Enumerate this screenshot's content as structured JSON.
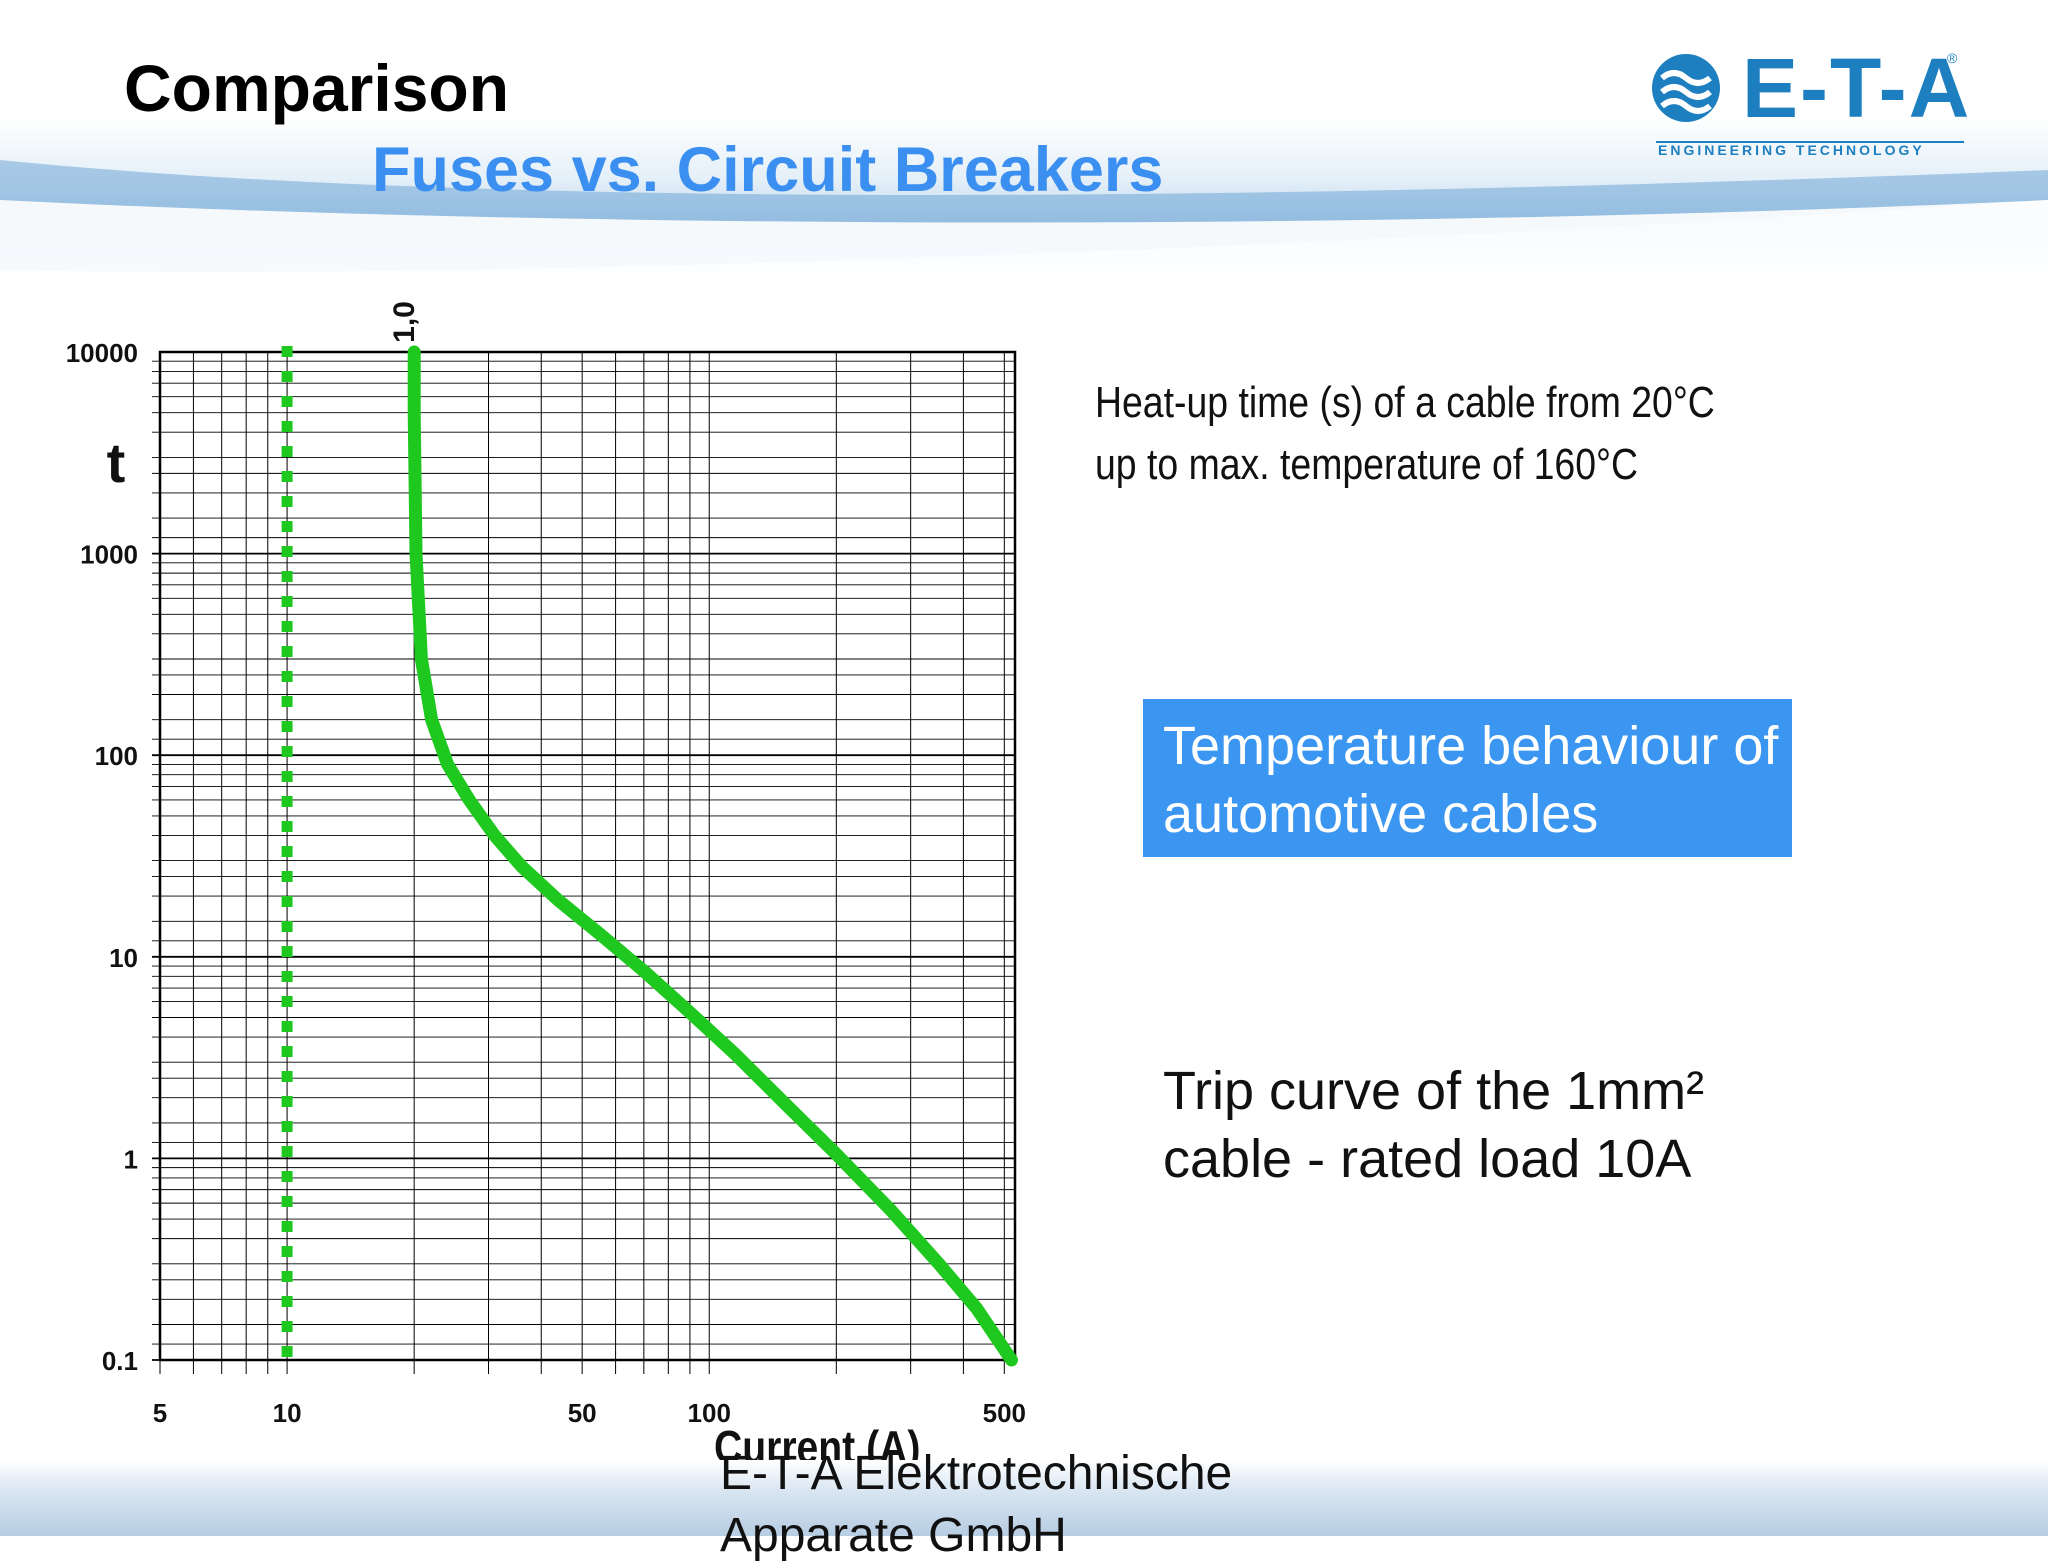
{
  "header": {
    "title": "Comparison",
    "subtitle": "Fuses vs. Circuit Breakers",
    "logo_text": "E-T-A",
    "logo_tagline": "ENGINEERING TECHNOLOGY",
    "logo_reg": "®"
  },
  "notes": {
    "heatup": "Heat-up time (s) of a cable from 20°C up to max. temperature of 160°C",
    "temperature_box": "Temperature behaviour of automotive cables",
    "trip_curve": "Trip curve of the 1mm² cable - rated load 10A"
  },
  "footer": {
    "text": "E-T-A Elektrotechnische Apparate GmbH"
  },
  "colors": {
    "curve": "#1fc81f",
    "accent_blue": "#3a96f0",
    "logo_blue": "#1d7fc0"
  },
  "chart_data": {
    "type": "line",
    "title": "",
    "xlabel": "Current (A)",
    "ylabel": "t",
    "x_scale": "log",
    "y_scale": "log",
    "xlim": [
      5,
      530
    ],
    "ylim": [
      0.1,
      10000
    ],
    "x_ticks": [
      5,
      10,
      50,
      100,
      500
    ],
    "x_tick_labels": [
      "5",
      "10",
      "50",
      "100",
      "500"
    ],
    "y_ticks": [
      10000,
      1000,
      100,
      10,
      1,
      0.1
    ],
    "y_tick_labels": [
      "10000",
      "1000",
      "100",
      "10",
      "1",
      "0.1"
    ],
    "grid": true,
    "reference_line": {
      "x": 10,
      "label": "",
      "style": "dotted"
    },
    "multiple_marker": {
      "x": 20,
      "label": "1,0"
    },
    "series": [
      {
        "x": [
          20,
          20,
          20.2,
          20.8,
          22,
          24,
          27,
          31,
          36,
          44,
          55,
          70,
          90,
          115,
          150,
          200,
          270,
          350,
          430,
          520
        ],
        "y": [
          10000,
          5000,
          1000,
          300,
          150,
          90,
          60,
          40,
          28,
          19,
          13,
          8.5,
          5.3,
          3.3,
          1.9,
          1.05,
          0.55,
          0.3,
          0.18,
          0.1
        ]
      }
    ]
  }
}
